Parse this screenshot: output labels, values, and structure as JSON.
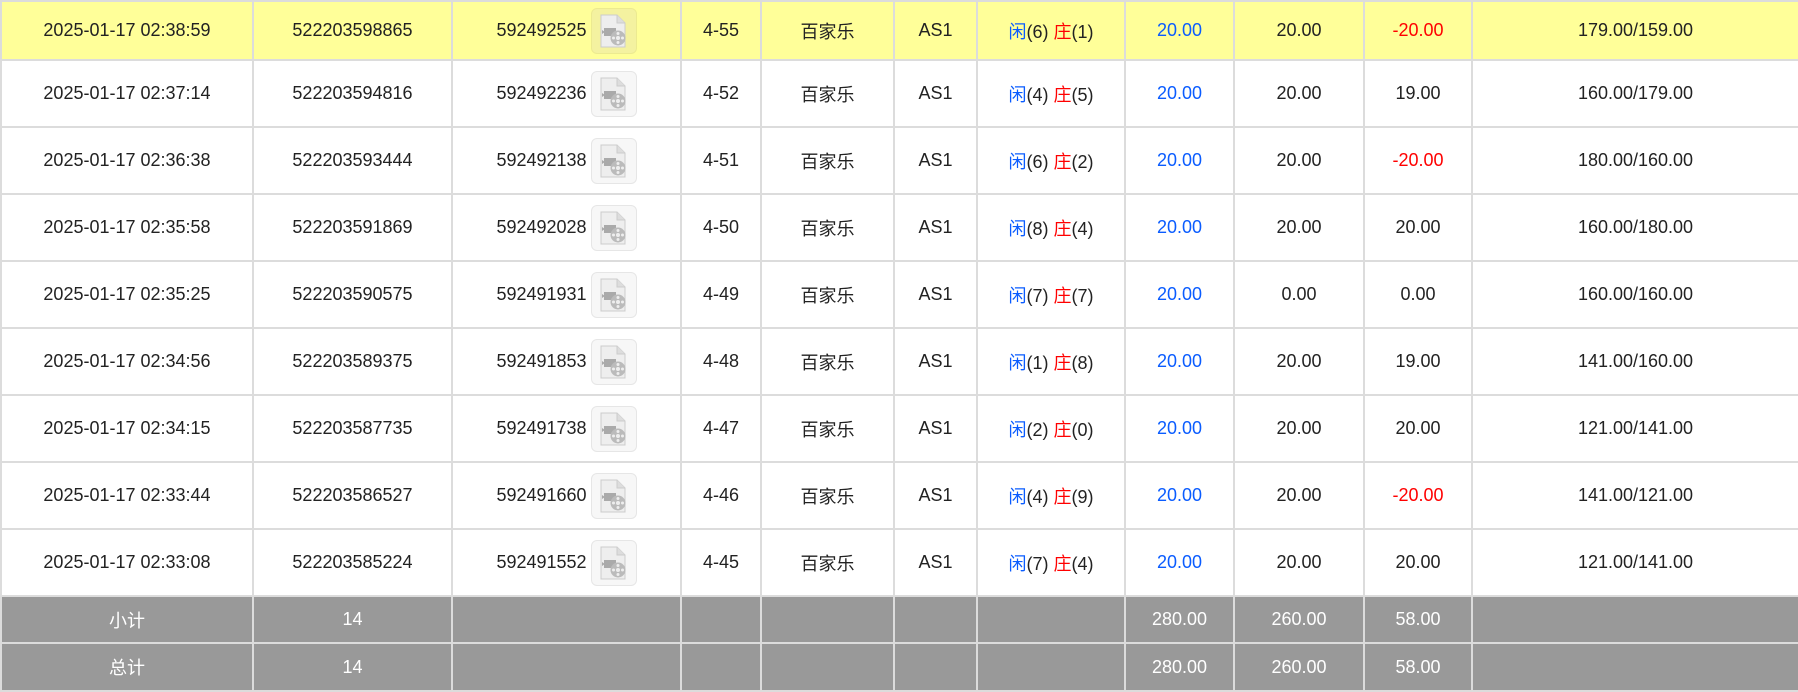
{
  "rows": [
    {
      "time": "2025-01-17 02:38:59",
      "order_id": "522203598865",
      "round_id": "592492525",
      "table_no": "4-55",
      "game": "百家乐",
      "room": "AS1",
      "player_label": "闲",
      "player": "(6)",
      "banker_label": "庄",
      "banker": "(1)",
      "bet": "20.00",
      "valid_bet": "20.00",
      "win_loss": "-20.00",
      "balance": "179.00/159.00",
      "highlight": true,
      "icon": "video-replay-icon"
    },
    {
      "time": "2025-01-17 02:37:14",
      "order_id": "522203594816",
      "round_id": "592492236",
      "table_no": "4-52",
      "game": "百家乐",
      "room": "AS1",
      "player_label": "闲",
      "player": "(4)",
      "banker_label": "庄",
      "banker": "(5)",
      "bet": "20.00",
      "valid_bet": "20.00",
      "win_loss": "19.00",
      "balance": "160.00/179.00"
    },
    {
      "time": "2025-01-17 02:36:38",
      "order_id": "522203593444",
      "round_id": "592492138",
      "table_no": "4-51",
      "game": "百家乐",
      "room": "AS1",
      "player_label": "闲",
      "player": "(6)",
      "banker_label": "庄",
      "banker": "(2)",
      "bet": "20.00",
      "valid_bet": "20.00",
      "win_loss": "-20.00",
      "balance": "180.00/160.00"
    },
    {
      "time": "2025-01-17 02:35:58",
      "order_id": "522203591869",
      "round_id": "592492028",
      "table_no": "4-50",
      "game": "百家乐",
      "room": "AS1",
      "player_label": "闲",
      "player": "(8)",
      "banker_label": "庄",
      "banker": "(4)",
      "bet": "20.00",
      "valid_bet": "20.00",
      "win_loss": "20.00",
      "balance": "160.00/180.00"
    },
    {
      "time": "2025-01-17 02:35:25",
      "order_id": "522203590575",
      "round_id": "592491931",
      "table_no": "4-49",
      "game": "百家乐",
      "room": "AS1",
      "player_label": "闲",
      "player": "(7)",
      "banker_label": "庄",
      "banker": "(7)",
      "bet": "20.00",
      "valid_bet": "0.00",
      "win_loss": "0.00",
      "balance": "160.00/160.00"
    },
    {
      "time": "2025-01-17 02:34:56",
      "order_id": "522203589375",
      "round_id": "592491853",
      "table_no": "4-48",
      "game": "百家乐",
      "room": "AS1",
      "player_label": "闲",
      "player": "(1)",
      "banker_label": "庄",
      "banker": "(8)",
      "bet": "20.00",
      "valid_bet": "20.00",
      "win_loss": "19.00",
      "balance": "141.00/160.00"
    },
    {
      "time": "2025-01-17 02:34:15",
      "order_id": "522203587735",
      "round_id": "592491738",
      "table_no": "4-47",
      "game": "百家乐",
      "room": "AS1",
      "player_label": "闲",
      "player": "(2)",
      "banker_label": "庄",
      "banker": "(0)",
      "bet": "20.00",
      "valid_bet": "20.00",
      "win_loss": "20.00",
      "balance": "121.00/141.00"
    },
    {
      "time": "2025-01-17 02:33:44",
      "order_id": "522203586527",
      "round_id": "592491660",
      "table_no": "4-46",
      "game": "百家乐",
      "room": "AS1",
      "player_label": "闲",
      "player": "(4)",
      "banker_label": "庄",
      "banker": "(9)",
      "bet": "20.00",
      "valid_bet": "20.00",
      "win_loss": "-20.00",
      "balance": "141.00/121.00"
    },
    {
      "time": "2025-01-17 02:33:08",
      "order_id": "522203585224",
      "round_id": "592491552",
      "table_no": "4-45",
      "game": "百家乐",
      "room": "AS1",
      "player_label": "闲",
      "player": "(7)",
      "banker_label": "庄",
      "banker": "(4)",
      "bet": "20.00",
      "valid_bet": "20.00",
      "win_loss": "20.00",
      "balance": "121.00/141.00"
    }
  ],
  "subtotal": {
    "label": "小计",
    "count": "14",
    "bet": "280.00",
    "valid_bet": "260.00",
    "win_loss": "58.00"
  },
  "total": {
    "label": "总计",
    "count": "14",
    "bet": "280.00",
    "valid_bet": "260.00",
    "win_loss": "58.00"
  },
  "colors": {
    "highlight": "#ffff99",
    "player": "#0a5cff",
    "banker": "#ff0000",
    "negative": "#ff0000",
    "summary_bg": "#999999"
  }
}
